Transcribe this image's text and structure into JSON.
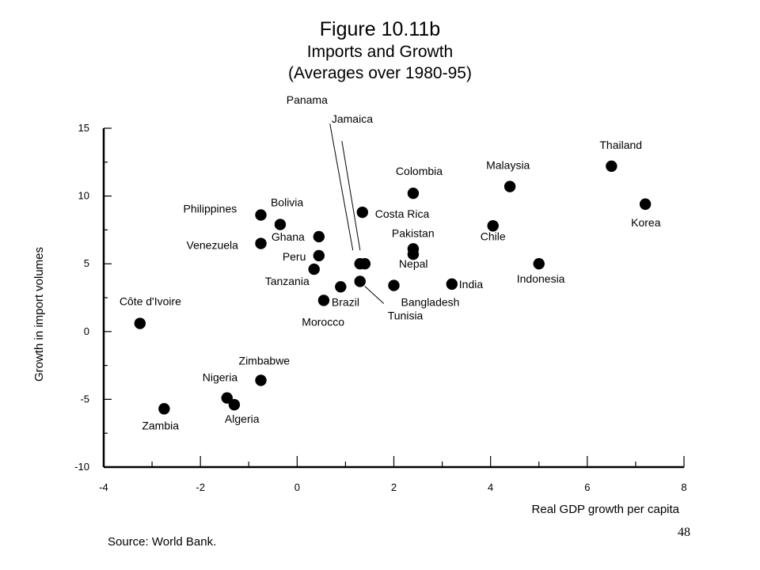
{
  "chart_data": {
    "type": "scatter",
    "title": "Figure 10.11b",
    "subtitle": "Imports and Growth",
    "subtitle2": "(Averages over 1980-95)",
    "xlabel": "Real GDP growth per capita",
    "ylabel": "Growth in import volumes",
    "xlim": [
      -4,
      8
    ],
    "ylim": [
      -10,
      15
    ],
    "x_ticks": [
      "-4",
      "-2",
      "0",
      "2",
      "4",
      "6",
      "8"
    ],
    "y_ticks": [
      "15",
      "10",
      "5",
      "0",
      "-5",
      "-10"
    ],
    "grid": false,
    "points": [
      {
        "label": "Thailand",
        "x": 6.5,
        "y": 12.2
      },
      {
        "label": "Malaysia",
        "x": 4.4,
        "y": 10.7
      },
      {
        "label": "Colombia",
        "x": 2.4,
        "y": 10.2
      },
      {
        "label": "Korea",
        "x": 7.2,
        "y": 9.4
      },
      {
        "label": "Costa Rica",
        "x": 1.35,
        "y": 8.8
      },
      {
        "label": "Philippines",
        "x": -0.75,
        "y": 8.6
      },
      {
        "label": "Bolivia",
        "x": -0.35,
        "y": 7.9
      },
      {
        "label": "Chile",
        "x": 4.05,
        "y": 7.8
      },
      {
        "label": "Ghana",
        "x": 0.45,
        "y": 7.0
      },
      {
        "label": "Venezuela",
        "x": -0.75,
        "y": 6.5
      },
      {
        "label": "Pakistan",
        "x": 2.4,
        "y": 6.1
      },
      {
        "label": "Nepal",
        "x": 2.4,
        "y": 5.7
      },
      {
        "label": "Peru",
        "x": 0.45,
        "y": 5.6
      },
      {
        "label": "Panama",
        "x": 1.3,
        "y": 5.0
      },
      {
        "label": "Jamaica",
        "x": 1.4,
        "y": 5.0
      },
      {
        "label": "Indonesia",
        "x": 5.0,
        "y": 5.0
      },
      {
        "label": "Tanzania",
        "x": 0.35,
        "y": 4.6
      },
      {
        "label": "Tunisia",
        "x": 1.3,
        "y": 3.7
      },
      {
        "label": "India",
        "x": 3.2,
        "y": 3.5
      },
      {
        "label": "Bangladesh",
        "x": 2.0,
        "y": 3.4
      },
      {
        "label": "Morocco",
        "x": 0.9,
        "y": 3.3
      },
      {
        "label": "Brazil",
        "x": 0.55,
        "y": 2.3
      },
      {
        "label": "Côte d'Ivoire",
        "x": -3.25,
        "y": 0.6
      },
      {
        "label": "Zimbabwe",
        "x": -0.75,
        "y": -3.6
      },
      {
        "label": "Nigeria",
        "x": -1.45,
        "y": -4.9
      },
      {
        "label": "Algeria",
        "x": -1.3,
        "y": -5.4
      },
      {
        "label": "Zambia",
        "x": -2.75,
        "y": -5.7
      }
    ]
  },
  "source": "Source: World Bank.",
  "page_number": "48"
}
